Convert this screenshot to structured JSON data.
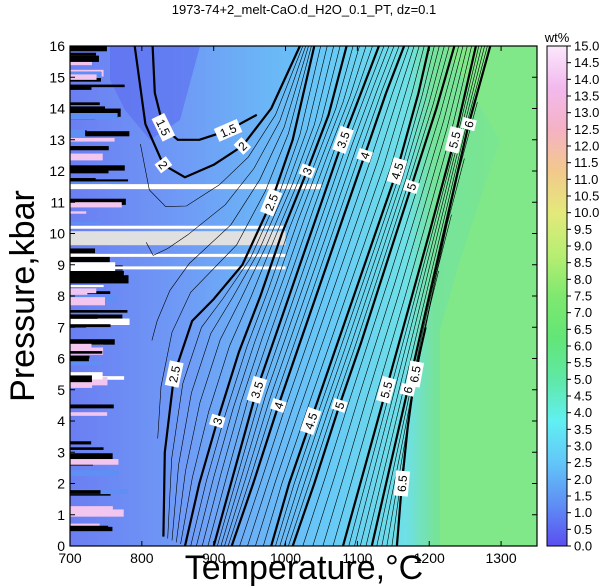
{
  "chart_data": {
    "type": "heatmap",
    "title": "1973-74+2_melt-CaO.d_H2O_0.1_PT, dz=0.1",
    "xlabel": "Temperature,°C",
    "ylabel": "Pressure,kbar",
    "xlim": [
      700,
      1350
    ],
    "ylim": [
      0,
      16
    ],
    "x_ticks": [
      "700",
      "800",
      "900",
      "1000",
      "1100",
      "1200",
      "1300"
    ],
    "y_ticks": [
      "0",
      "1",
      "2",
      "3",
      "4",
      "5",
      "6",
      "7",
      "8",
      "9",
      "10",
      "11",
      "12",
      "13",
      "14",
      "15",
      "16"
    ],
    "colorbar": {
      "label": "wt%",
      "range": [
        0.0,
        15.0
      ],
      "ticks": [
        "0.0",
        "0.5",
        "1.0",
        "1.5",
        "2.0",
        "2.5",
        "3.0",
        "3.5",
        "4.0",
        "4.5",
        "5.0",
        "5.5",
        "6.0",
        "6.5",
        "7.0",
        "7.5",
        "8.0",
        "8.5",
        "9.0",
        "9.5",
        "10.0",
        "10.5",
        "11.0",
        "11.5",
        "12.0",
        "12.5",
        "13.0",
        "13.5",
        "14.0",
        "14.5",
        "15.0"
      ],
      "colors": [
        "#5a4ff0",
        "#5f8ef5",
        "#62c6f8",
        "#61f0f2",
        "#5fe8a6",
        "#63e676",
        "#7fe86f",
        "#b8ee73",
        "#e4e97b",
        "#f2c98c",
        "#f5b2c4",
        "#f2b9ee",
        "#fbe8fd"
      ]
    },
    "contours": [
      {
        "level": "1.5",
        "x": [
          815,
          818,
          830,
          850,
          880,
          920,
          960
        ],
        "y": [
          16,
          14.5,
          13.4,
          13.0,
          13.0,
          13.3,
          13.8
        ]
      },
      {
        "level": "2",
        "x": [
          790,
          805,
          830,
          860,
          900,
          940,
          980,
          1020
        ],
        "y": [
          16,
          13.5,
          12.2,
          11.8,
          12.2,
          12.8,
          14.0,
          16
        ]
      },
      {
        "level": "2.5",
        "x": [
          830,
          832,
          845,
          870,
          900,
          940,
          980,
          1010,
          1040
        ],
        "y": [
          0.3,
          3.0,
          5.5,
          7.2,
          7.9,
          9.0,
          11.0,
          13.0,
          16
        ]
      },
      {
        "level": "3",
        "x": [
          860,
          880,
          905,
          935,
          965,
          995,
          1030,
          1060,
          1085
        ],
        "y": [
          0,
          2.0,
          4.0,
          6.2,
          8.0,
          10.0,
          12.0,
          13.8,
          16
        ]
      },
      {
        "level": "3.5",
        "x": [
          900,
          930,
          960,
          990,
          1020,
          1050,
          1080,
          1110,
          1130
        ],
        "y": [
          0,
          2.5,
          5.0,
          7.0,
          9.0,
          11.0,
          13.0,
          14.8,
          16
        ]
      },
      {
        "level": "4",
        "x": [
          925,
          955,
          990,
          1020,
          1050,
          1080,
          1110,
          1140,
          1165
        ],
        "y": [
          0,
          2.0,
          4.5,
          6.5,
          8.5,
          10.5,
          12.5,
          14.5,
          16
        ]
      },
      {
        "level": "4.5",
        "x": [
          980,
          1005,
          1035,
          1065,
          1095,
          1125,
          1155,
          1185,
          1200
        ],
        "y": [
          0,
          2.0,
          4.0,
          6.0,
          8.0,
          10.0,
          12.0,
          14.5,
          16
        ]
      },
      {
        "level": "5",
        "x": [
          1010,
          1040,
          1075,
          1105,
          1140,
          1175,
          1210,
          1235
        ],
        "y": [
          0,
          2.0,
          4.5,
          6.5,
          9.0,
          11.5,
          14.0,
          16
        ]
      },
      {
        "level": "5.5",
        "x": [
          1080,
          1110,
          1140,
          1170,
          1200,
          1235,
          1265
        ],
        "y": [
          0,
          2.5,
          5.0,
          7.5,
          10.0,
          13.0,
          16
        ]
      },
      {
        "level": "6",
        "x": [
          1120,
          1145,
          1170,
          1195,
          1225,
          1255,
          1285
        ],
        "y": [
          0,
          2.5,
          5.0,
          7.5,
          10.5,
          13.5,
          16
        ]
      },
      {
        "level": "6.5",
        "x": [
          1155,
          1162,
          1170,
          1180,
          1195
        ],
        "y": [
          0,
          2.0,
          3.8,
          5.5,
          7.0
        ]
      }
    ],
    "gaps_kbar": [
      11.5,
      10.2,
      9.8,
      9.3,
      8.9
    ]
  }
}
